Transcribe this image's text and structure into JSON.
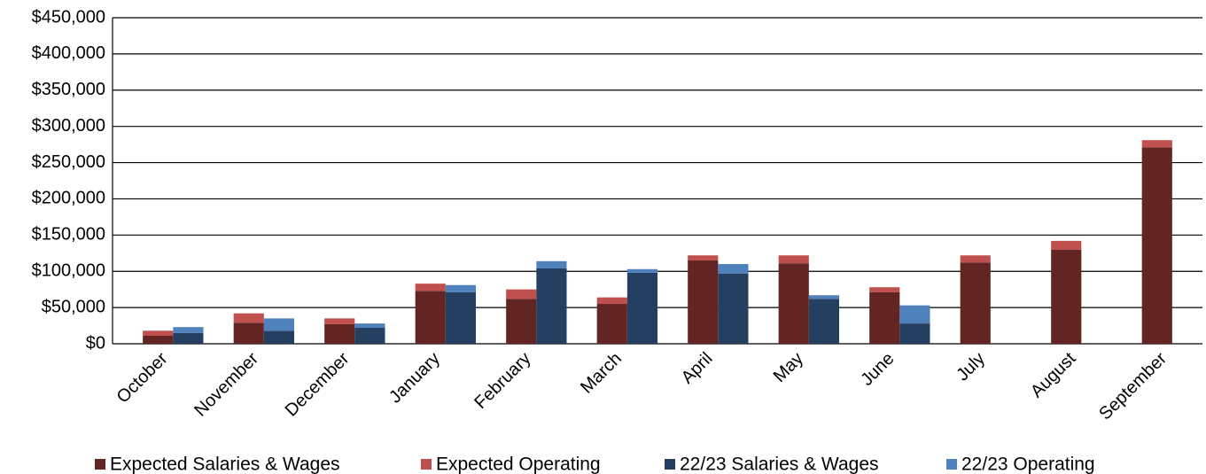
{
  "chart_data": {
    "type": "bar",
    "categories": [
      "October",
      "November",
      "December",
      "January",
      "February",
      "March",
      "April",
      "May",
      "June",
      "July",
      "August",
      "September"
    ],
    "series": [
      {
        "name": "Expected Salaries & Wages",
        "color": "#632523",
        "values": [
          11000,
          29000,
          27000,
          73000,
          62000,
          55000,
          115000,
          111000,
          71000,
          112000,
          130000,
          271000
        ]
      },
      {
        "name": "Expected Operating",
        "color": "#c0504d",
        "values": [
          7000,
          13000,
          8000,
          10000,
          13000,
          9000,
          7000,
          11000,
          7000,
          10000,
          12000,
          10000
        ]
      },
      {
        "name": "22/23 Salaries & Wages",
        "color": "#243f60",
        "values": [
          15000,
          18000,
          22000,
          71000,
          104000,
          98000,
          97000,
          62000,
          28000,
          null,
          null,
          null
        ]
      },
      {
        "name": "22/23 Operating",
        "color": "#4f81bd",
        "values": [
          8000,
          17000,
          6000,
          10000,
          10000,
          5000,
          13000,
          5000,
          25000,
          null,
          null,
          null
        ]
      }
    ],
    "ylim": [
      0,
      450000
    ],
    "yticks": [
      {
        "value": 0,
        "label": "$0"
      },
      {
        "value": 50000,
        "label": "$50,000"
      },
      {
        "value": 100000,
        "label": "$100,000"
      },
      {
        "value": 150000,
        "label": "$150,000"
      },
      {
        "value": 200000,
        "label": "$200,000"
      },
      {
        "value": 250000,
        "label": "$250,000"
      },
      {
        "value": 300000,
        "label": "$300,000"
      },
      {
        "value": 350000,
        "label": "$350,000"
      },
      {
        "value": 400000,
        "label": "$400,000"
      },
      {
        "value": 450000,
        "label": "$450,000"
      }
    ],
    "grid": true,
    "legend": "bottom"
  }
}
